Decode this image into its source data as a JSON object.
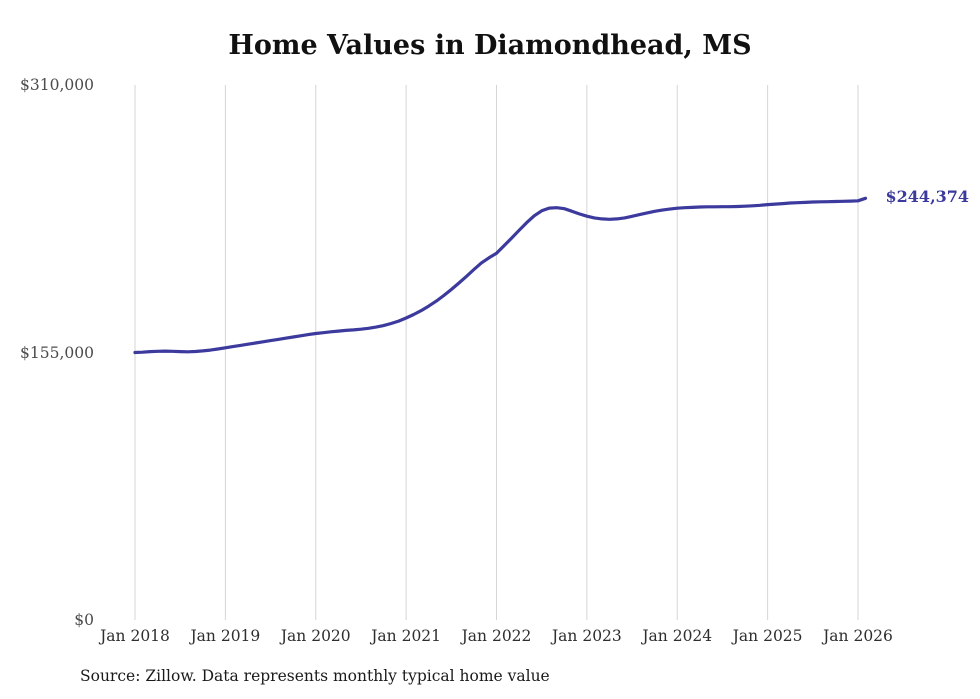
{
  "page": {
    "title": "Home Values in Diamondhead, MS",
    "end_label": "$244,374",
    "source_note": "Source: Zillow. Data represents monthly typical home value"
  },
  "chart_data": {
    "type": "line",
    "title": "Home Values in Diamondhead, MS",
    "xlabel": "",
    "ylabel": "",
    "ylim": [
      0,
      310000
    ],
    "grid": "vertical-only",
    "line_color": "#3c3a9d",
    "grid_color": "#d5d5d5",
    "x_ticks": [
      "Jan 2018",
      "Jan 2019",
      "Jan 2020",
      "Jan 2021",
      "Jan 2022",
      "Jan 2023",
      "Jan 2024",
      "Jan 2025",
      "Jan 2026"
    ],
    "y_ticks": [
      {
        "label": "$310,000",
        "value": 310000
      },
      {
        "label": "$155,000",
        "value": 155000
      },
      {
        "label": "$0",
        "value": 0
      }
    ],
    "end_value": 244374,
    "series": [
      {
        "name": "Typical home value",
        "start": "Jan 2018",
        "frequency": "monthly",
        "values": [
          155000,
          155200,
          155500,
          155700,
          155800,
          155700,
          155500,
          155400,
          155600,
          155900,
          156400,
          157000,
          157700,
          158400,
          159100,
          159800,
          160500,
          161200,
          161900,
          162600,
          163300,
          164000,
          164700,
          165400,
          166000,
          166500,
          167000,
          167400,
          167800,
          168100,
          168500,
          169000,
          169700,
          170600,
          171800,
          173200,
          175000,
          177000,
          179300,
          181900,
          184800,
          188000,
          191500,
          195200,
          199100,
          203100,
          206900,
          209900,
          212500,
          216800,
          221300,
          225800,
          230200,
          234200,
          237100,
          238700,
          238900,
          238300,
          236900,
          235300,
          234000,
          233000,
          232400,
          232200,
          232400,
          233000,
          233900,
          234900,
          235900,
          236800,
          237500,
          238100,
          238600,
          238900,
          239100,
          239300,
          239400,
          239400,
          239500,
          239500,
          239600,
          239800,
          240000,
          240300,
          240700,
          241000,
          241300,
          241600,
          241800,
          242000,
          242200,
          242300,
          242400,
          242500,
          242600,
          242700,
          242900,
          244374
        ]
      }
    ]
  }
}
